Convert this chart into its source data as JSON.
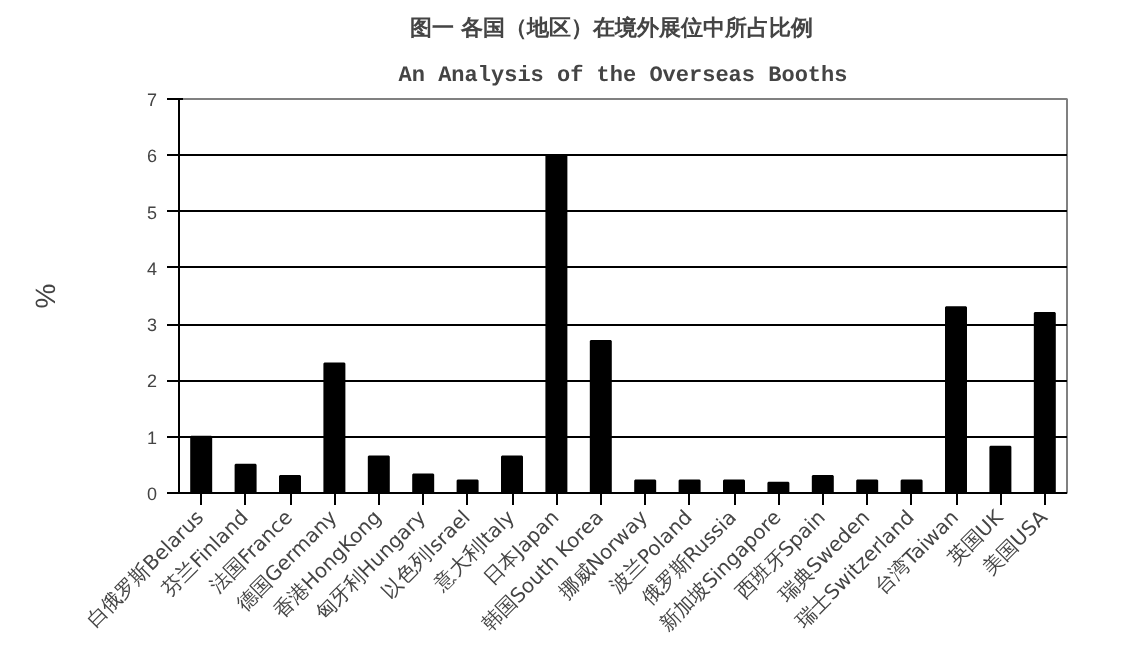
{
  "chart_data": {
    "type": "bar",
    "title": "图一    各国（地区）在境外展位中所占比例",
    "subtitle": "An Analysis of the Overseas Booths",
    "ylabel": "%",
    "categories": [
      "白俄罗斯Belarus",
      "芬兰Finland",
      "法国France",
      "德国Germany",
      "香港HongKong",
      "匈牙利Hungary",
      "以色列Israel",
      "意大利Italy",
      "日本Japan",
      "韩国South Korea",
      "挪威Norway",
      "波兰Poland",
      "俄罗斯Russia",
      "新加坡Singapore",
      "西班牙Spain",
      "瑞典Sweden",
      "瑞士Switzerland",
      "台湾Taiwan",
      "英国UK",
      "美国USA"
    ],
    "values": [
      1.0,
      0.5,
      0.3,
      2.3,
      0.65,
      0.33,
      0.22,
      0.65,
      6.0,
      2.7,
      0.22,
      0.22,
      0.22,
      0.18,
      0.3,
      0.22,
      0.22,
      3.3,
      0.82,
      3.2
    ],
    "color": "#000000",
    "ylim": [
      0,
      7
    ],
    "yticks": [
      0,
      1,
      2,
      3,
      4,
      5,
      6,
      7
    ],
    "grid": "y"
  }
}
